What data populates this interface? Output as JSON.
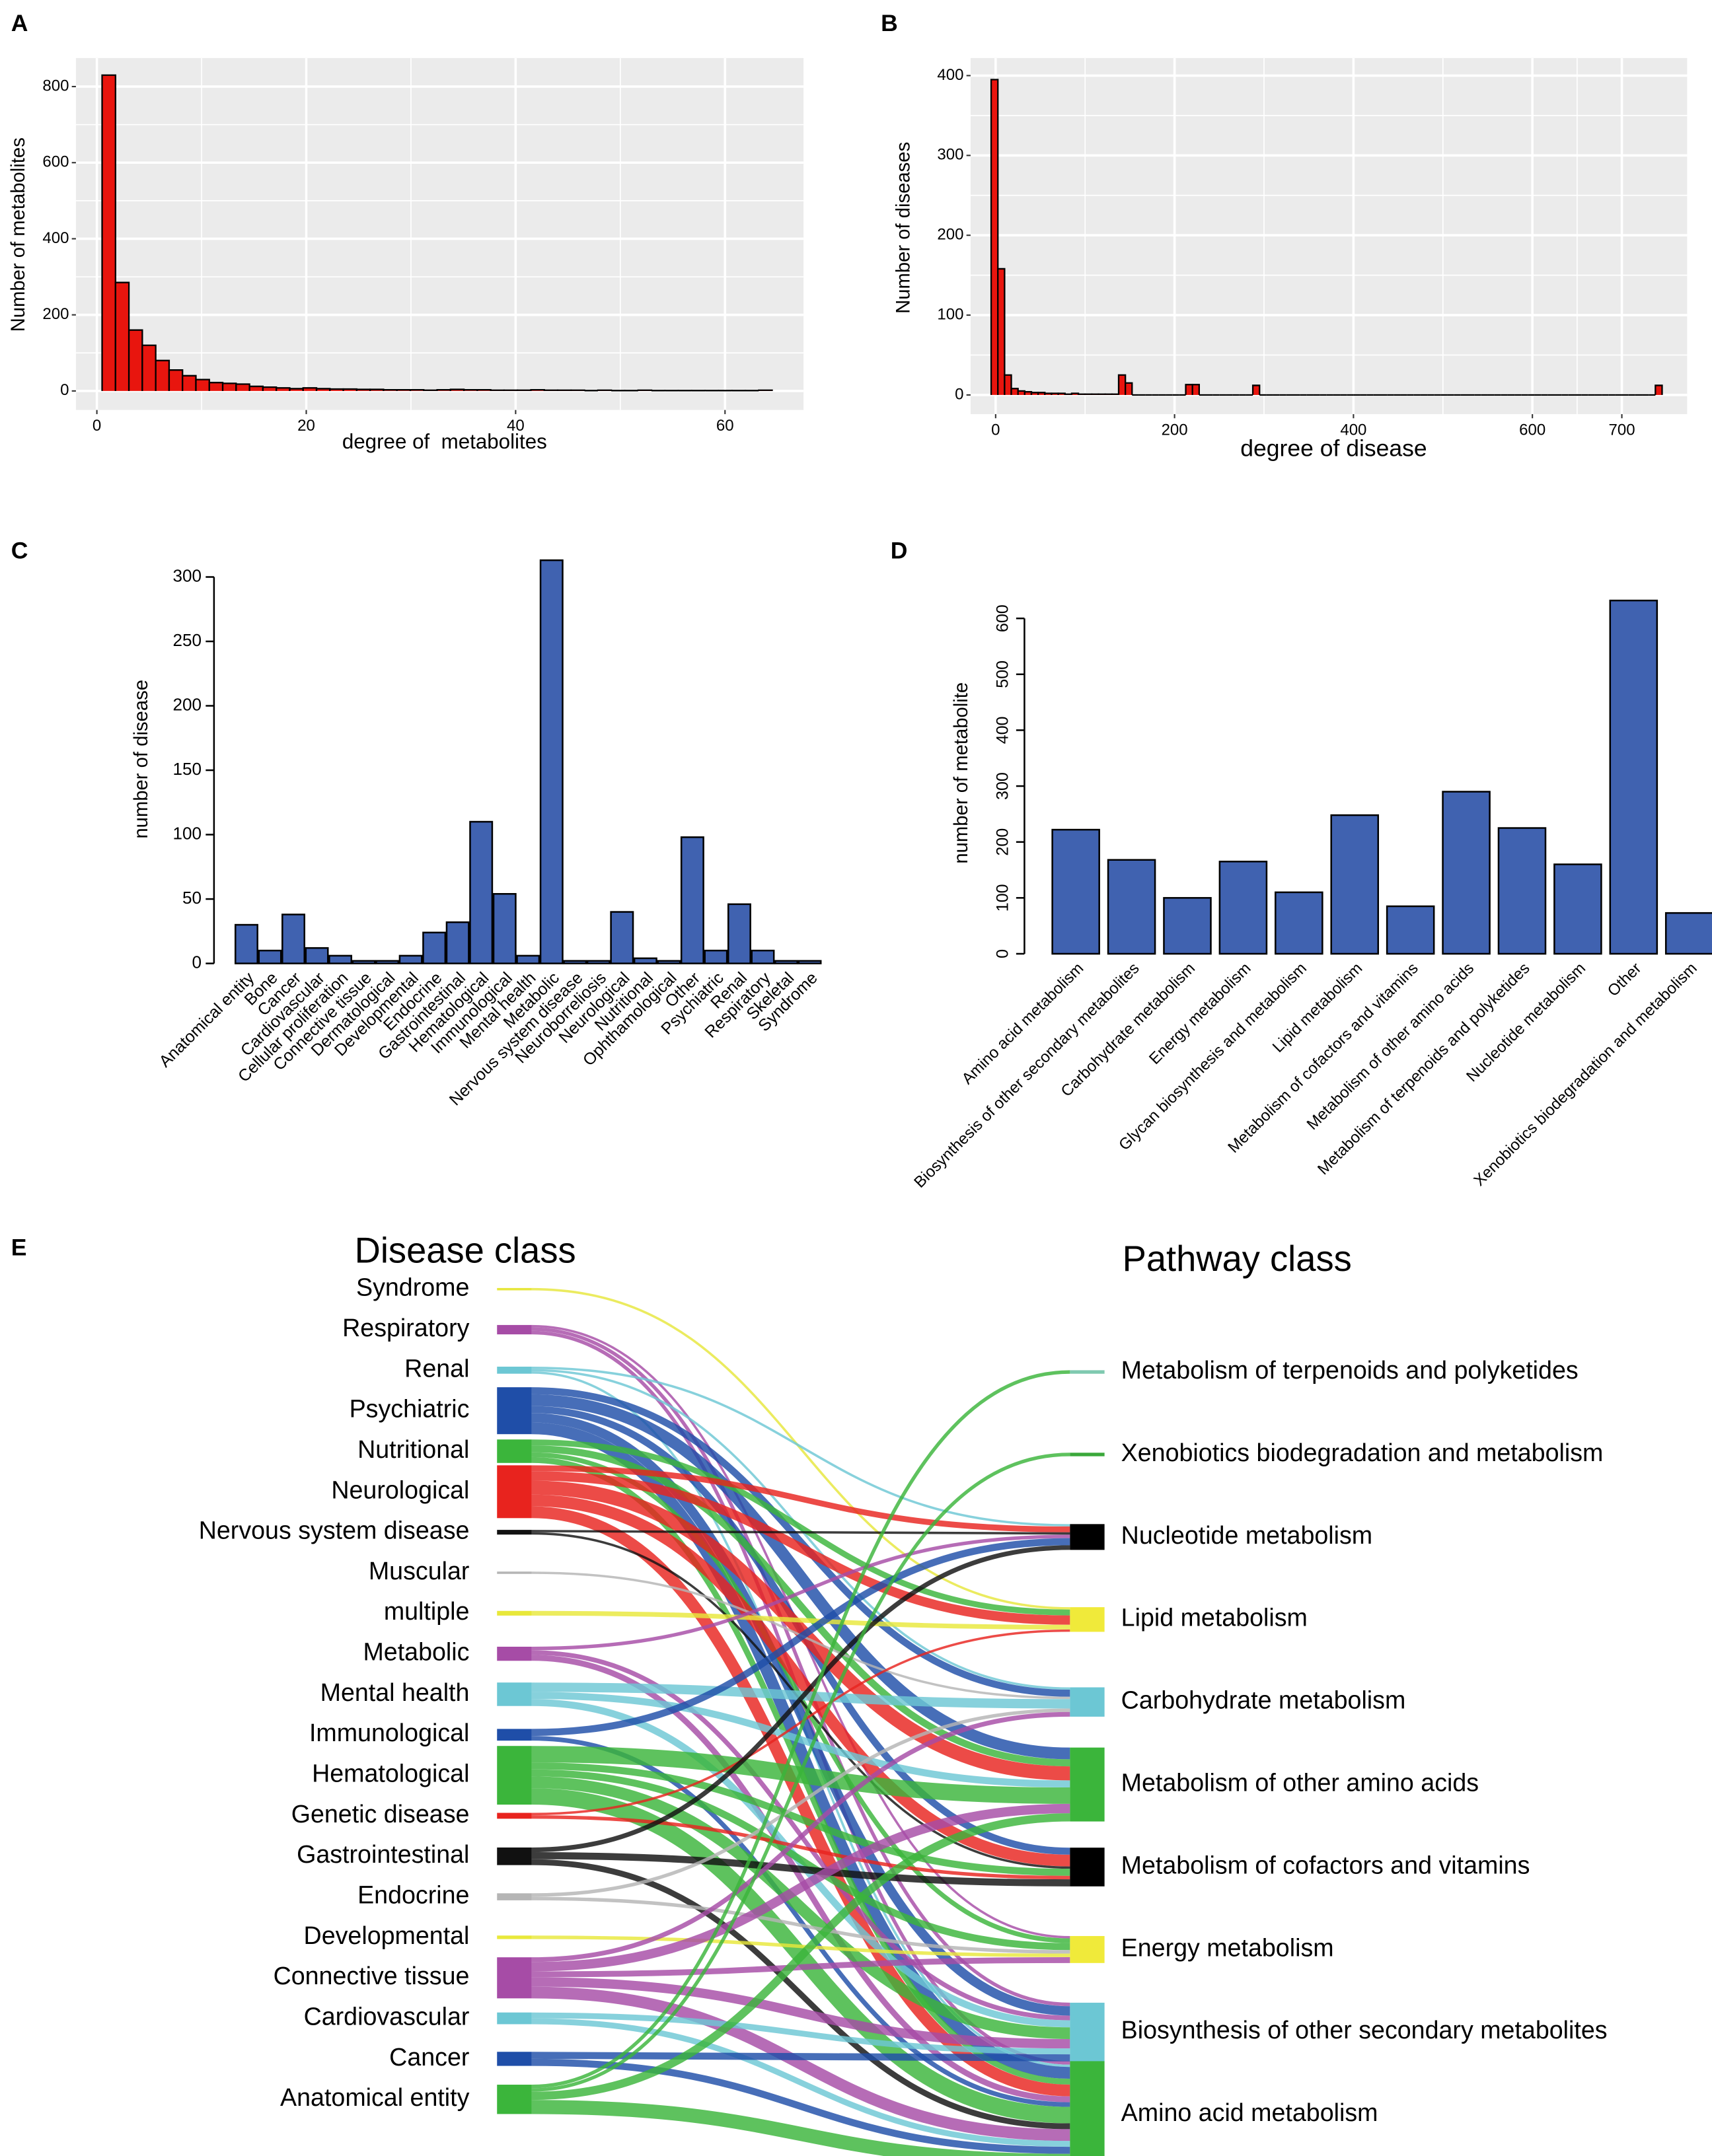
{
  "chart_data": [
    {
      "type": "histogram",
      "panel": "A",
      "xlabel": "degree of  metabolites",
      "ylabel": "Number of metabolites",
      "color": "#e8150e",
      "grid": true,
      "bins": [
        0.5,
        1.78,
        3.06,
        4.34,
        5.62,
        6.9,
        8.18,
        9.46,
        10.74,
        12.02,
        13.3,
        14.58,
        15.86,
        17.14,
        18.42,
        19.7,
        20.98,
        22.26,
        23.54,
        24.82,
        26.1,
        27.38,
        28.66,
        29.94,
        31.22,
        32.5,
        33.78,
        35.06,
        36.34,
        37.62,
        38.9,
        40.18,
        41.46,
        42.74,
        44.02,
        45.3,
        46.58,
        47.86,
        49.14,
        50.42,
        51.7,
        52.98,
        54.26,
        55.54,
        56.82,
        58.1,
        59.38,
        60.66,
        61.94,
        63.22,
        64.5
      ],
      "values": [
        830,
        285,
        160,
        120,
        80,
        55,
        40,
        30,
        22,
        20,
        18,
        12,
        10,
        8,
        6,
        8,
        6,
        5,
        5,
        4,
        4,
        3,
        3,
        3,
        2,
        3,
        4,
        3,
        3,
        2,
        2,
        2,
        3,
        2,
        2,
        2,
        1,
        2,
        1,
        1,
        2,
        1,
        1,
        1,
        1,
        1,
        1,
        1,
        1,
        2
      ],
      "xlim": [
        -2,
        67.5
      ],
      "xticks": [
        0,
        20,
        40,
        60
      ],
      "ylim": [
        -50,
        875
      ],
      "yticks": [
        0,
        200,
        400,
        600,
        800
      ]
    },
    {
      "type": "histogram",
      "panel": "B",
      "xlabel": "degree of disease",
      "ylabel": "Number of diseases",
      "color": "#e8150e",
      "grid": true,
      "bins": [
        -5,
        2.5,
        10,
        17.5,
        25,
        32.5,
        40,
        47.5,
        55,
        62.5,
        70,
        77.5,
        85,
        92.5,
        100,
        107.5,
        115,
        122.5,
        130,
        137.5,
        145,
        152.5,
        160,
        167.5,
        175,
        182.5,
        190,
        197.5,
        205,
        212.5,
        220,
        227.5,
        235,
        242.5,
        250,
        257.5,
        265,
        272.5,
        280,
        287.5,
        295,
        302.5,
        310,
        317.5,
        325,
        332.5,
        340,
        347.5,
        355,
        362.5,
        370,
        377.5,
        385,
        392.5,
        400,
        407.5,
        415,
        422.5,
        430,
        437.5,
        445,
        452.5,
        460,
        467.5,
        475,
        482.5,
        490,
        497.5,
        505,
        512.5,
        520,
        527.5,
        535,
        542.5,
        550,
        557.5,
        565,
        572.5,
        580,
        587.5,
        595,
        602.5,
        610,
        617.5,
        625,
        632.5,
        640,
        647.5,
        655,
        662.5,
        670,
        677.5,
        685,
        692.5,
        700,
        707.5,
        715,
        722.5,
        730,
        737.5,
        745
      ],
      "values": [
        395,
        158,
        25,
        8,
        5,
        4,
        3,
        3,
        2,
        2,
        2,
        1,
        2,
        1,
        1,
        1,
        1,
        1,
        1,
        25,
        15,
        0,
        0,
        0,
        0,
        0,
        0,
        0,
        0,
        13,
        13,
        0,
        0,
        0,
        0,
        0,
        0,
        0,
        0,
        12,
        0,
        0,
        0,
        0,
        0,
        0,
        0,
        0,
        0,
        0,
        0,
        0,
        0,
        0,
        0,
        0,
        0,
        0,
        0,
        0,
        0,
        0,
        0,
        0,
        0,
        0,
        0,
        0,
        0,
        0,
        0,
        0,
        0,
        0,
        0,
        0,
        0,
        0,
        0,
        0,
        0,
        0,
        0,
        0,
        0,
        0,
        0,
        0,
        0,
        0,
        0,
        0,
        0,
        0,
        0,
        0,
        0,
        0,
        0,
        12
      ],
      "xlim": [
        -28,
        773
      ],
      "xticks": [
        0,
        200,
        400,
        600,
        700
      ],
      "ylim": [
        -24,
        422
      ],
      "yticks": [
        0,
        100,
        200,
        300,
        400
      ]
    },
    {
      "type": "bar",
      "panel": "C",
      "ylabel": "number of disease",
      "color": "#4062b0",
      "categories": [
        "Anatomical entity",
        "Bone",
        "Cancer",
        "Cardiovascular",
        "Cellular proliferation",
        "Connective tissue",
        "Dermatological",
        "Developmental",
        "Endocrine",
        "Gastrointestinal",
        "Hematological",
        "Immunological",
        "Mental health",
        "Metabolic",
        "Nervous system disease",
        "Neuroborreliosis",
        "Neurological",
        "Nutritional",
        "Ophthamological",
        "Other",
        "Psychiatric",
        "Renal",
        "Respiratory",
        "Skeletal",
        "Syndrome"
      ],
      "values": [
        30,
        10,
        38,
        12,
        6,
        2,
        2,
        6,
        24,
        32,
        110,
        54,
        6,
        313,
        2,
        2,
        40,
        4,
        2,
        98,
        10,
        46,
        10,
        2,
        2
      ],
      "ylim": [
        0,
        300
      ],
      "yticks": [
        0,
        50,
        100,
        150,
        200,
        250,
        300
      ]
    },
    {
      "type": "bar",
      "panel": "D",
      "ylabel": "number of metabolite",
      "color": "#4062b0",
      "categories": [
        "Amino acid metabolism",
        "Biosynthesis of other secondary metabolites",
        "Carbohydrate metabolism",
        "Energy metabolism",
        "Glycan biosynthesis and metabolism",
        "Lipid metabolism",
        "Metabolism of cofactors and vitamins",
        "Metabolism of other amino acids",
        "Metabolism of terpenoids and polyketides",
        "Nucleotide metabolism",
        "Other",
        "Xenobiotics biodegradation and metabolism"
      ],
      "values": [
        222,
        168,
        100,
        165,
        110,
        248,
        85,
        290,
        225,
        160,
        632,
        73
      ],
      "ylim": [
        0,
        600
      ],
      "yticks": [
        0,
        100,
        200,
        300,
        400,
        500,
        600
      ]
    },
    {
      "type": "sankey",
      "panel": "E",
      "title_left": "Disease class",
      "title_right": "Pathway class",
      "left_nodes": [
        "Syndrome",
        "Respiratory",
        "Renal",
        "Psychiatric",
        "Nutritional",
        "Neurological",
        "Nervous system disease",
        "Muscular",
        "multiple",
        "Metabolic",
        "Mental health",
        "Immunological",
        "Hematological",
        "Genetic disease",
        "Gastrointestinal",
        "Endocrine",
        "Developmental",
        "Connective tissue",
        "Cardiovascular",
        "Cancer",
        "Anatomical entity"
      ],
      "left_colors": [
        "#e6e63c",
        "#a64ca6",
        "#6cc7d4",
        "#1f4ea8",
        "#3bb53b",
        "#e8231e",
        "#111111",
        "#b5b5b5",
        "#e8e83a",
        "#a64ca6",
        "#6cc7d4",
        "#1f4ea8",
        "#3bb53b",
        "#e8231e",
        "#111111",
        "#b5b5b5",
        "#e8e83a",
        "#a64ca6",
        "#6cc7d4",
        "#1f4ea8",
        "#3bb53b"
      ],
      "right_nodes": [
        "Metabolism of terpenoids and polyketides",
        "Xenobiotics biodegradation and metabolism",
        "Nucleotide metabolism",
        "Lipid metabolism",
        "Carbohydrate metabolism",
        "Metabolism of other amino acids",
        "Metabolism of cofactors and vitamins",
        "Energy metabolism",
        "Biosynthesis of other secondary metabolites",
        "Amino acid metabolism"
      ],
      "right_colors": [
        "#7fc9b0",
        "#3aa83a",
        "#000000",
        "#f0ea3a",
        "#6cc7d4",
        "#3bb53b",
        "#000000",
        "#f0ea3a",
        "#6cc7d4",
        "#3bb53b"
      ],
      "links": {
        "source": [
          "Syndrome",
          "Respiratory",
          "Respiratory",
          "Respiratory",
          "Renal",
          "Renal",
          "Renal",
          "Psychiatric",
          "Psychiatric",
          "Psychiatric",
          "Psychiatric",
          "Psychiatric",
          "Nutritional",
          "Nutritional",
          "Nutritional",
          "Nutritional",
          "Neurological",
          "Neurological",
          "Neurological",
          "Neurological",
          "Neurological",
          "Nervous system disease",
          "Nervous system disease",
          "Muscular",
          "multiple",
          "Metabolic",
          "Metabolic",
          "Metabolic",
          "Mental health",
          "Mental health",
          "Mental health",
          "Immunological",
          "Immunological",
          "Hematological",
          "Hematological",
          "Hematological",
          "Hematological",
          "Hematological",
          "Genetic disease",
          "Genetic disease",
          "Gastrointestinal",
          "Gastrointestinal",
          "Gastrointestinal",
          "Endocrine",
          "Endocrine",
          "Developmental",
          "Connective tissue",
          "Connective tissue",
          "Connective tissue",
          "Connective tissue",
          "Connective tissue",
          "Cardiovascular",
          "Cardiovascular",
          "Cancer",
          "Cancer",
          "Anatomical entity",
          "Anatomical entity",
          "Anatomical entity",
          "Anatomical entity"
        ],
        "target": [
          "Lipid metabolism",
          "Energy metabolism",
          "Biosynthesis of other secondary metabolites",
          "Amino acid metabolism",
          "Nucleotide metabolism",
          "Carbohydrate metabolism",
          "Amino acid metabolism",
          "Carbohydrate metabolism",
          "Metabolism of other amino acids",
          "Metabolism of cofactors and vitamins",
          "Biosynthesis of other secondary metabolites",
          "Amino acid metabolism",
          "Lipid metabolism",
          "Metabolism of other amino acids",
          "Energy metabolism",
          "Amino acid metabolism",
          "Nucleotide metabolism",
          "Lipid metabolism",
          "Metabolism of other amino acids",
          "Metabolism of cofactors and vitamins",
          "Amino acid metabolism",
          "Nucleotide metabolism",
          "Metabolism of cofactors and vitamins",
          "Carbohydrate metabolism",
          "Lipid metabolism",
          "Nucleotide metabolism",
          "Biosynthesis of other secondary metabolites",
          "Amino acid metabolism",
          "Carbohydrate metabolism",
          "Metabolism of other amino acids",
          "Biosynthesis of other secondary metabolites",
          "Nucleotide metabolism",
          "Amino acid metabolism",
          "Metabolism of other amino acids",
          "Metabolism of cofactors and vitamins",
          "Energy metabolism",
          "Biosynthesis of other secondary metabolites",
          "Amino acid metabolism",
          "Lipid metabolism",
          "Metabolism of cofactors and vitamins",
          "Nucleotide metabolism",
          "Metabolism of cofactors and vitamins",
          "Amino acid metabolism",
          "Carbohydrate metabolism",
          "Energy metabolism",
          "Energy metabolism",
          "Carbohydrate metabolism",
          "Metabolism of other amino acids",
          "Energy metabolism",
          "Biosynthesis of other secondary metabolites",
          "Amino acid metabolism",
          "Biosynthesis of other secondary metabolites",
          "Amino acid metabolism",
          "Biosynthesis of other secondary metabolites",
          "Amino acid metabolism",
          "Metabolism of terpenoids and polyketides",
          "Xenobiotics biodegradation and metabolism",
          "Metabolism of other amino acids",
          "Amino acid metabolism"
        ],
        "values": [
          2,
          2,
          3,
          3,
          2,
          2,
          2,
          6,
          10,
          6,
          8,
          10,
          5,
          6,
          4,
          5,
          5,
          8,
          12,
          10,
          10,
          2,
          2,
          2,
          4,
          3,
          4,
          5,
          8,
          6,
          6,
          6,
          4,
          14,
          6,
          6,
          10,
          14,
          2,
          3,
          4,
          6,
          5,
          3,
          3,
          3,
          4,
          8,
          5,
          8,
          10,
          5,
          5,
          6,
          6,
          3,
          3,
          7,
          12
        ]
      }
    }
  ]
}
